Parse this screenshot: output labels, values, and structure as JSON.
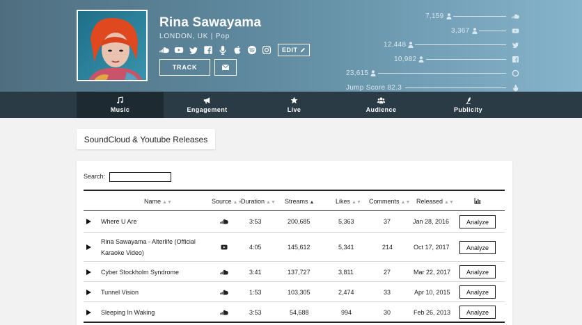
{
  "artist": {
    "name": "Rina Sawayama",
    "meta": "LONDON, UK | Pop",
    "edit_label": "EDIT",
    "track_label": "TRACK"
  },
  "socials": [
    "soundcloud-icon",
    "youtube-icon",
    "twitter-icon",
    "facebook-icon",
    "microphone-icon",
    "apple-icon",
    "spotify-icon",
    "instagram-icon"
  ],
  "stats": [
    {
      "value": "7,159",
      "icon": "soundcloud-icon",
      "people": true
    },
    {
      "value": "3,367",
      "icon": "youtube-icon",
      "people": true
    },
    {
      "value": "12,448",
      "icon": "twitter-icon",
      "people": true
    },
    {
      "value": "10,982",
      "icon": "facebook-icon",
      "people": true
    },
    {
      "value": "23,615",
      "icon": "instagram-icon",
      "people": true
    },
    {
      "value": "Jump Score 82.3",
      "icon": "flame-icon",
      "people": false
    }
  ],
  "tabs": [
    {
      "label": "Music",
      "icon": "music-note-icon",
      "active": true
    },
    {
      "label": "Engagement",
      "icon": "megaphone-icon",
      "active": false
    },
    {
      "label": "Live",
      "icon": "star-icon",
      "active": false
    },
    {
      "label": "Audience",
      "icon": "users-icon",
      "active": false
    },
    {
      "label": "Publicity",
      "icon": "quill-icon",
      "active": false
    }
  ],
  "section_title": "SoundCloud & Youtube Releases",
  "search": {
    "label": "Search:",
    "value": ""
  },
  "table": {
    "headers": {
      "name": "Name",
      "source": "Source",
      "duration": "Duration",
      "streams": "Streams",
      "likes": "Likes",
      "comments": "Comments",
      "released": "Released"
    },
    "sorted_column": "streams",
    "rows": [
      {
        "name": "Where U Are",
        "source": "soundcloud",
        "duration": "3:53",
        "streams": "200,685",
        "likes": "5,363",
        "comments": "37",
        "released": "Jan 28, 2016",
        "action": "Analyze"
      },
      {
        "name": "Rina Sawayama - Alterlife (Official Karaoke Video)",
        "source": "youtube",
        "duration": "4:05",
        "streams": "145,612",
        "likes": "5,341",
        "comments": "214",
        "released": "Oct 17, 2017",
        "action": "Analyze"
      },
      {
        "name": "Cyber Stockholm Syndrome",
        "source": "soundcloud",
        "duration": "3:41",
        "streams": "137,727",
        "likes": "3,811",
        "comments": "27",
        "released": "Mar 22, 2017",
        "action": "Analyze"
      },
      {
        "name": "Tunnel Vision",
        "source": "soundcloud",
        "duration": "1:53",
        "streams": "103,305",
        "likes": "2,474",
        "comments": "33",
        "released": "Apr 10, 2015",
        "action": "Analyze"
      },
      {
        "name": "Sleeping In Waking",
        "source": "soundcloud",
        "duration": "3:53",
        "streams": "54,688",
        "likes": "994",
        "comments": "30",
        "released": "Feb 26, 2013",
        "action": "Analyze"
      }
    ]
  },
  "colors": {
    "header_start": "#4f6f80",
    "header_end": "#86b4cb",
    "tabbar": "#2b3b45",
    "tab_active": "#1d2a32"
  }
}
